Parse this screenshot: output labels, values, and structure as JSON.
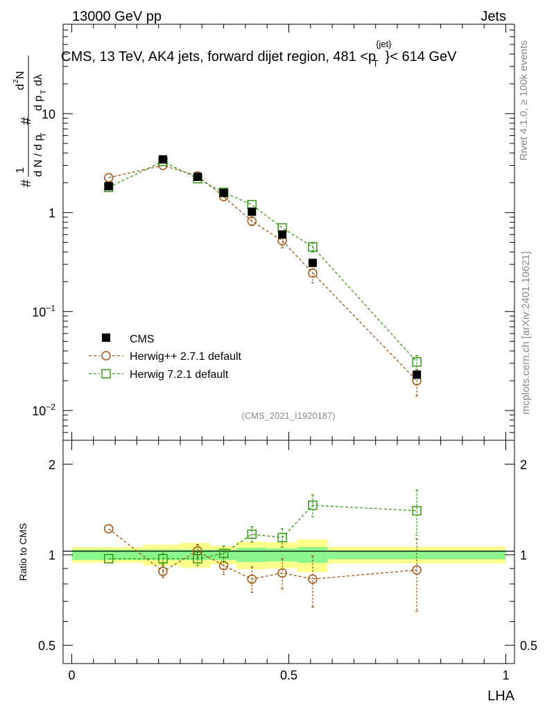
{
  "header": {
    "left": "13000 GeV pp",
    "right": "Jets"
  },
  "side_labels": {
    "rivet": "Rivet 4.1.0, ≥ 100k events",
    "mcplots": "mcplots.cern.ch [arXiv:2401.10621]"
  },
  "chart_data": [
    {
      "type": "scatter",
      "panel": "main",
      "title_part1": "CMS, 13 TeV, AK4 jets, forward dijet region, 481 <p",
      "title_sup": "{jet}",
      "title_sub": "T",
      "title_part2": "}< 614 GeV",
      "ylabel": "# 1/(dN/dp_T) # d²N/(dp_T dλ)",
      "yscale": "log",
      "ylim": [
        0.005,
        80
      ],
      "xlim": [
        -0.02,
        1.02
      ],
      "yticks": [
        {
          "value": 10,
          "label": "10"
        },
        {
          "value": 1,
          "label": "1"
        },
        {
          "value": 0.1,
          "label": "10",
          "exp": "−1"
        },
        {
          "value": 0.01,
          "label": "10",
          "exp": "−2"
        }
      ],
      "watermark": "(CMS_2021_I1920187)",
      "legend": {
        "position": "lower-left",
        "entries": [
          "CMS",
          "Herwig++ 2.7.1 default",
          "Herwig 7.2.1 default"
        ]
      },
      "series": [
        {
          "name": "CMS",
          "color": "#000000",
          "marker": "filled-square",
          "line": "none",
          "x": [
            0.085,
            0.21,
            0.29,
            0.35,
            0.415,
            0.485,
            0.555,
            0.795
          ],
          "y": [
            1.85,
            3.45,
            2.3,
            1.58,
            1.02,
            0.6,
            0.31,
            0.023
          ],
          "err": [
            0.05,
            0.08,
            0.05,
            0.04,
            0.03,
            0.02,
            0.01,
            0.001
          ]
        },
        {
          "name": "Herwig++ 2.7.1 default",
          "color": "#a0540e",
          "marker": "open-circle",
          "line": "dashed",
          "x": [
            0.085,
            0.21,
            0.29,
            0.35,
            0.415,
            0.485,
            0.555,
            0.795
          ],
          "y": [
            2.25,
            3.0,
            2.35,
            1.45,
            0.82,
            0.52,
            0.245,
            0.02
          ],
          "err": [
            0.1,
            0.12,
            0.12,
            0.1,
            0.08,
            0.08,
            0.05,
            0.006
          ]
        },
        {
          "name": "Herwig 7.2.1 default",
          "color": "#339911",
          "marker": "open-square",
          "line": "dashed",
          "x": [
            0.085,
            0.21,
            0.29,
            0.35,
            0.415,
            0.485,
            0.555,
            0.795
          ],
          "y": [
            1.8,
            3.3,
            2.2,
            1.6,
            1.2,
            0.7,
            0.45,
            0.031
          ],
          "err": [
            0.06,
            0.1,
            0.08,
            0.06,
            0.05,
            0.05,
            0.05,
            0.005
          ]
        }
      ]
    },
    {
      "type": "scatter",
      "panel": "ratio",
      "ylabel": "Ratio to CMS",
      "xlabel": "LHA",
      "yscale": "log",
      "ylim": [
        0.435,
        2.4
      ],
      "xlim": [
        -0.02,
        1.02
      ],
      "yticks": [
        {
          "value": 2,
          "label": "2"
        },
        {
          "value": 1,
          "label": "1"
        },
        {
          "value": 0.5,
          "label": "0.5"
        }
      ],
      "xticks": [
        {
          "value": 0,
          "label": "0"
        },
        {
          "value": 0.5,
          "label": "0.5"
        },
        {
          "value": 1,
          "label": "1"
        }
      ],
      "bands": [
        {
          "x0": 0.0,
          "x1": 0.165,
          "yellow": [
            0.94,
            1.06
          ],
          "green": [
            0.96,
            1.04
          ]
        },
        {
          "x0": 0.165,
          "x1": 0.25,
          "yellow": [
            0.92,
            1.08
          ],
          "green": [
            0.96,
            1.04
          ]
        },
        {
          "x0": 0.25,
          "x1": 0.32,
          "yellow": [
            0.905,
            1.095
          ],
          "green": [
            0.96,
            1.04
          ]
        },
        {
          "x0": 0.32,
          "x1": 0.38,
          "yellow": [
            0.93,
            1.07
          ],
          "green": [
            0.96,
            1.04
          ]
        },
        {
          "x0": 0.38,
          "x1": 0.45,
          "yellow": [
            0.895,
            1.105
          ],
          "green": [
            0.945,
            1.055
          ]
        },
        {
          "x0": 0.45,
          "x1": 0.52,
          "yellow": [
            0.9,
            1.1
          ],
          "green": [
            0.95,
            1.05
          ]
        },
        {
          "x0": 0.52,
          "x1": 0.59,
          "yellow": [
            0.875,
            1.125
          ],
          "green": [
            0.94,
            1.06
          ]
        },
        {
          "x0": 0.59,
          "x1": 1.0,
          "yellow": [
            0.935,
            1.065
          ],
          "green": [
            0.965,
            1.035
          ]
        }
      ],
      "series": [
        {
          "name": "Herwig++ 2.7.1 default",
          "color": "#a0540e",
          "marker": "open-circle",
          "x": [
            0.085,
            0.21,
            0.29,
            0.35,
            0.415,
            0.485,
            0.555,
            0.795
          ],
          "y": [
            1.22,
            0.88,
            1.03,
            0.92,
            0.83,
            0.87,
            0.83,
            0.89
          ],
          "err": [
            0.03,
            0.04,
            0.05,
            0.06,
            0.08,
            0.1,
            0.16,
            0.24
          ]
        },
        {
          "name": "Herwig 7.2.1 default",
          "color": "#339911",
          "marker": "open-square",
          "x": [
            0.085,
            0.21,
            0.29,
            0.35,
            0.415,
            0.485,
            0.555,
            0.795
          ],
          "y": [
            0.97,
            0.97,
            0.97,
            1.01,
            1.17,
            1.14,
            1.46,
            1.4
          ],
          "err": [
            0.03,
            0.04,
            0.05,
            0.06,
            0.07,
            0.08,
            0.12,
            0.24
          ]
        }
      ]
    }
  ]
}
